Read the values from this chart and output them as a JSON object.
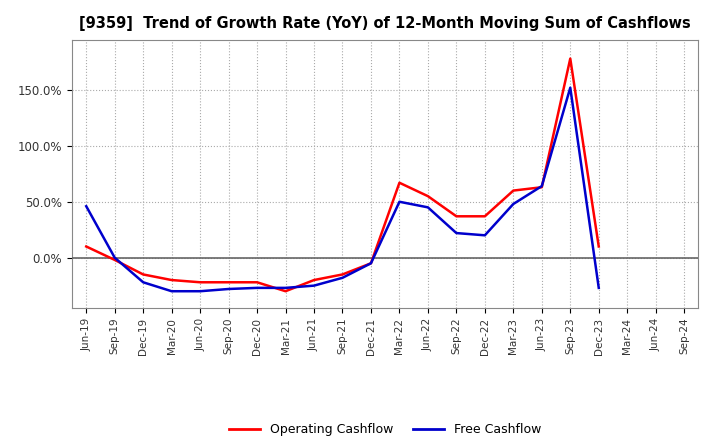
{
  "title": "[9359]  Trend of Growth Rate (YoY) of 12-Month Moving Sum of Cashflows",
  "x_labels": [
    "Jun-19",
    "Sep-19",
    "Dec-19",
    "Mar-20",
    "Jun-20",
    "Sep-20",
    "Dec-20",
    "Mar-21",
    "Jun-21",
    "Sep-21",
    "Dec-21",
    "Mar-22",
    "Jun-22",
    "Sep-22",
    "Dec-22",
    "Mar-23",
    "Jun-23",
    "Sep-23",
    "Dec-23",
    "Mar-24",
    "Jun-24",
    "Sep-24"
  ],
  "operating_cashflow": [
    0.1,
    -0.02,
    -0.15,
    -0.2,
    -0.22,
    -0.22,
    -0.22,
    -0.3,
    -0.2,
    -0.15,
    -0.05,
    0.67,
    0.55,
    0.37,
    0.37,
    0.6,
    0.63,
    1.78,
    0.1,
    null,
    null,
    null
  ],
  "free_cashflow": [
    0.46,
    0.0,
    -0.22,
    -0.3,
    -0.3,
    -0.28,
    -0.27,
    -0.27,
    -0.25,
    -0.18,
    -0.05,
    0.5,
    0.45,
    0.22,
    0.2,
    0.48,
    0.64,
    1.52,
    -0.27,
    null,
    null,
    null
  ],
  "operating_color": "#ff0000",
  "free_color": "#0000cc",
  "background_color": "#ffffff",
  "grid_color": "#aaaaaa",
  "legend_labels": [
    "Operating Cashflow",
    "Free Cashflow"
  ]
}
